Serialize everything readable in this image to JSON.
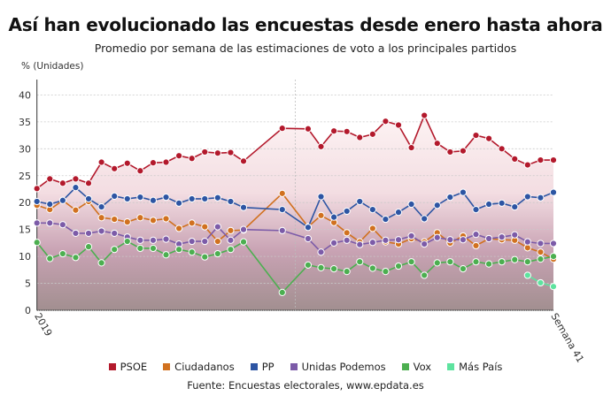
{
  "chart_data": {
    "type": "line",
    "title": "Así han evolucionado las encuestas desde enero hasta ahora",
    "subtitle": "Promedio por semana de las estimaciones de voto a los principales partidos",
    "ylabel": "% (Unidades)",
    "xlabel": "",
    "ylim": [
      0,
      40
    ],
    "yticks": [
      0,
      5,
      10,
      15,
      20,
      25,
      30,
      35,
      40
    ],
    "x_tick_labels": [
      "2019",
      "Semana 41"
    ],
    "xlim": [
      1,
      41
    ],
    "grid": true,
    "legend_position": "bottom",
    "x": [
      1,
      2,
      3,
      4,
      5,
      6,
      7,
      8,
      9,
      10,
      11,
      12,
      13,
      14,
      15,
      16,
      17,
      20,
      22,
      23,
      24,
      25,
      26,
      27,
      28,
      29,
      30,
      31,
      32,
      33,
      34,
      35,
      36,
      37,
      38,
      39,
      40,
      41
    ],
    "reference_line_x": 21,
    "series": [
      {
        "name": "PSOE",
        "color": "#b3192c",
        "values": [
          22.6,
          24.4,
          23.6,
          24.4,
          23.6,
          27.5,
          26.3,
          27.3,
          25.9,
          27.4,
          27.5,
          28.7,
          28.2,
          29.4,
          29.2,
          29.3,
          27.7,
          33.8,
          33.7,
          30.4,
          33.3,
          33.2,
          32.1,
          32.7,
          35.1,
          34.4,
          30.2,
          36.2,
          31.0,
          29.4,
          29.6,
          32.5,
          31.9,
          30.0,
          28.1,
          27.0,
          27.9,
          27.9
        ]
      },
      {
        "name": "Ciudadanos",
        "color": "#d1711f",
        "values": [
          19.5,
          18.7,
          20.4,
          18.6,
          20.2,
          17.2,
          16.9,
          16.4,
          17.2,
          16.7,
          17.0,
          15.2,
          16.2,
          15.5,
          12.8,
          14.8,
          14.9,
          21.7,
          15.5,
          17.6,
          16.3,
          14.4,
          12.7,
          15.2,
          12.7,
          12.3,
          13.3,
          12.7,
          14.4,
          12.5,
          13.8,
          12.0,
          13.3,
          13.1,
          13.0,
          11.6,
          10.8,
          9.5
        ]
      },
      {
        "name": "PP",
        "color": "#2d55a3",
        "values": [
          20.2,
          19.7,
          20.4,
          22.8,
          20.7,
          19.2,
          21.2,
          20.7,
          21.0,
          20.4,
          21.0,
          19.9,
          20.7,
          20.7,
          20.9,
          20.2,
          19.1,
          18.7,
          15.4,
          21.1,
          17.3,
          18.4,
          20.2,
          18.7,
          16.9,
          18.2,
          19.7,
          17.0,
          19.5,
          21.0,
          21.9,
          18.7,
          19.7,
          19.9,
          19.2,
          21.1,
          20.9,
          21.9
        ]
      },
      {
        "name": "Unidas Podemos",
        "color": "#7c5ba8",
        "values": [
          16.2,
          16.2,
          15.9,
          14.3,
          14.3,
          14.7,
          14.3,
          13.6,
          13.0,
          13.0,
          13.2,
          12.3,
          12.8,
          12.8,
          15.5,
          13.0,
          15.0,
          14.8,
          13.3,
          10.8,
          12.5,
          13.0,
          12.2,
          12.6,
          13.0,
          13.1,
          13.8,
          12.3,
          13.5,
          13.1,
          13.1,
          14.1,
          13.3,
          13.6,
          14.0,
          12.7,
          12.4,
          12.4
        ]
      },
      {
        "name": "Vox",
        "color": "#4caf50",
        "values": [
          12.6,
          9.6,
          10.5,
          9.8,
          11.8,
          8.8,
          11.3,
          12.8,
          11.5,
          11.5,
          10.3,
          11.3,
          10.8,
          9.9,
          10.5,
          11.3,
          12.7,
          3.3,
          8.4,
          7.9,
          7.7,
          7.2,
          9.0,
          7.8,
          7.2,
          8.2,
          9.0,
          6.5,
          8.8,
          9.0,
          7.7,
          9.0,
          8.6,
          9.0,
          9.4,
          9.0,
          9.5,
          10.0
        ]
      },
      {
        "name": "Más País",
        "color": "#5ee39f",
        "values": [
          null,
          null,
          null,
          null,
          null,
          null,
          null,
          null,
          null,
          null,
          null,
          null,
          null,
          null,
          null,
          null,
          null,
          null,
          null,
          null,
          null,
          null,
          null,
          null,
          null,
          null,
          null,
          null,
          null,
          null,
          null,
          null,
          null,
          null,
          null,
          6.5,
          5.1,
          4.4
        ]
      }
    ]
  },
  "source": "Fuente: Encuestas electorales, www.epdata.es"
}
